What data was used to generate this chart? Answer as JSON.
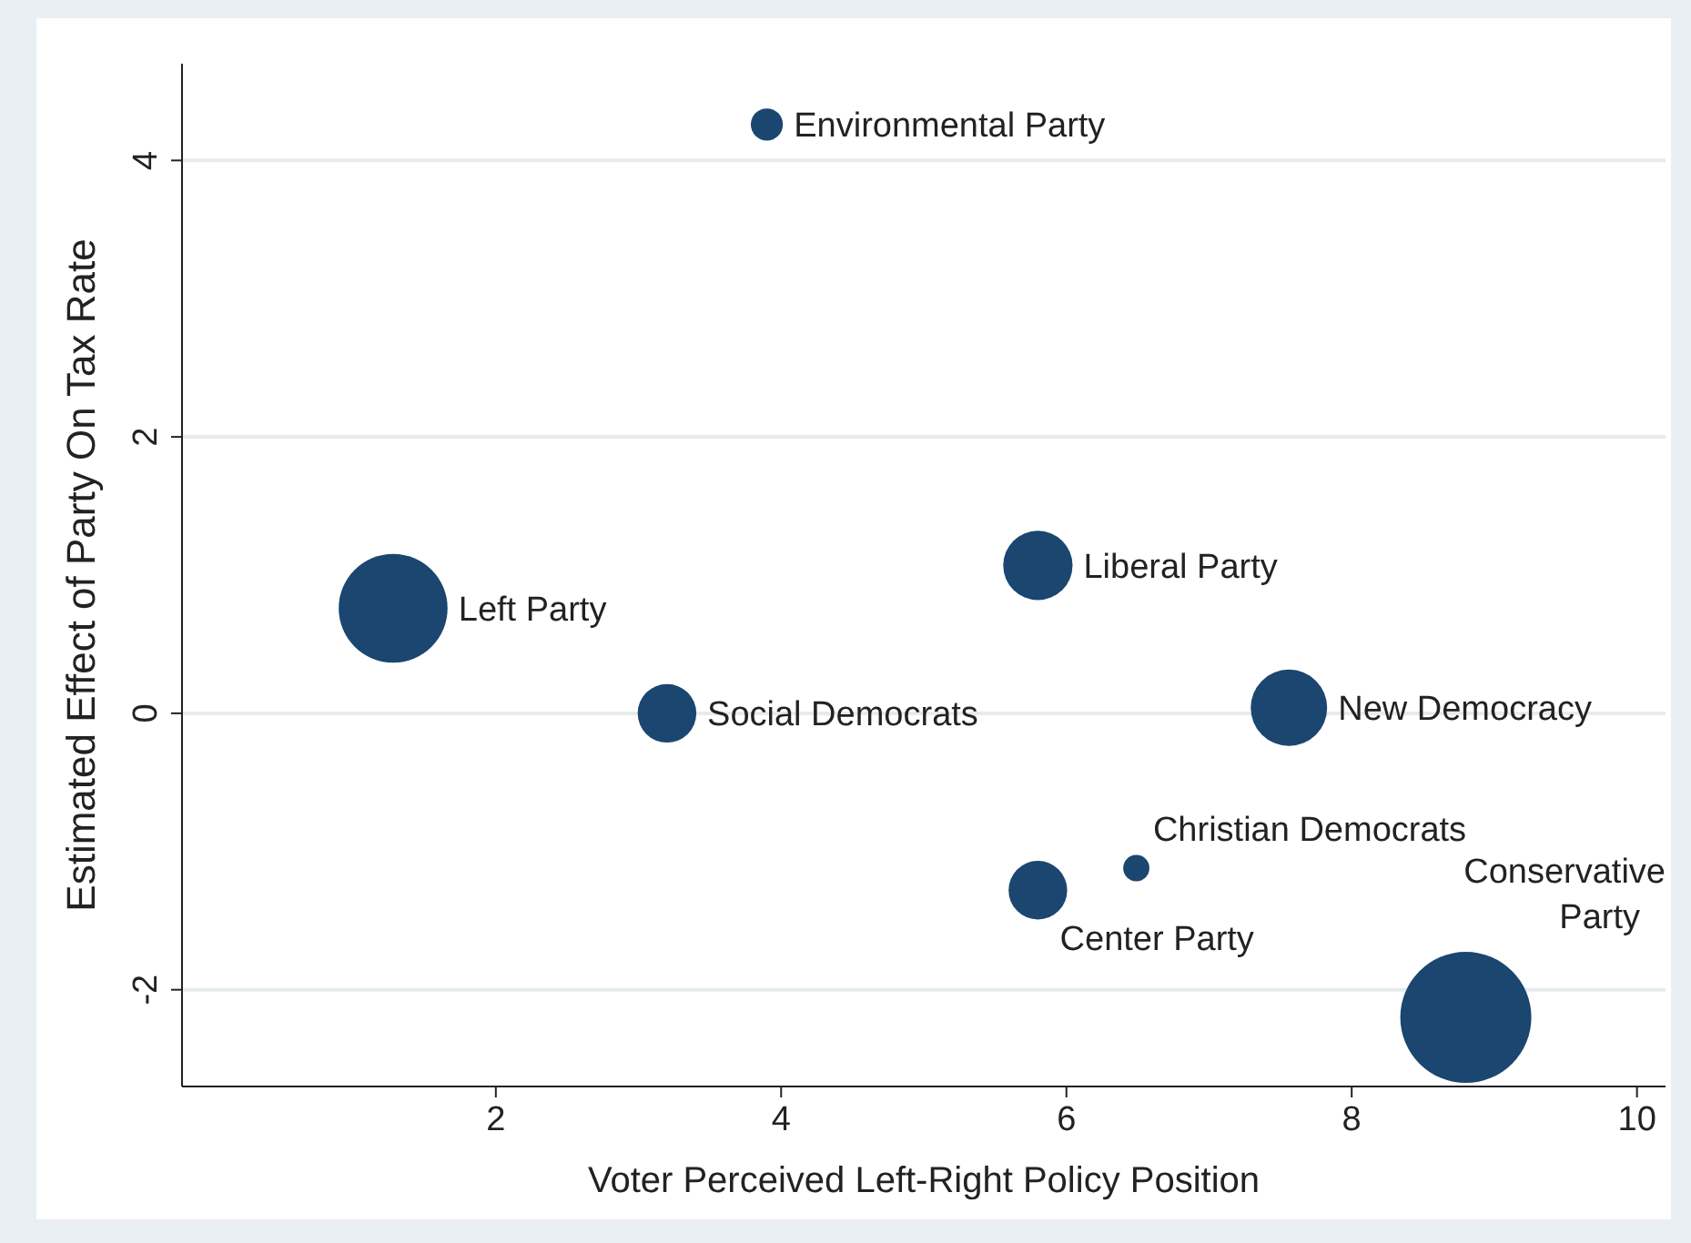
{
  "chart_data": {
    "type": "bubble",
    "xlabel": "Voter Perceived Left-Right Policy Position",
    "ylabel": "Estimated Effect of Party On Tax Rate",
    "xlim": [
      -0.2,
      10.2
    ],
    "ylim": [
      -2.7,
      4.7
    ],
    "xticks": [
      2,
      4,
      6,
      8,
      10
    ],
    "yticks": [
      -2,
      0,
      2,
      4
    ],
    "grid": "y",
    "series": [
      {
        "name": "Environmental Party",
        "color": "#1a4670",
        "x": [
          3.9
        ],
        "values": [
          4.26
        ],
        "sizes": [
          0.06
        ]
      },
      {
        "name": "Left Party",
        "color": "#1a4670",
        "x": [
          1.28
        ],
        "values": [
          0.76
        ],
        "sizes": [
          0.69
        ]
      },
      {
        "name": "Social Democrats",
        "color": "#1a4670",
        "x": [
          3.2
        ],
        "values": [
          0.0
        ],
        "sizes": [
          0.2
        ]
      },
      {
        "name": "Liberal Party",
        "color": "#1a4670",
        "x": [
          5.8
        ],
        "values": [
          1.07
        ],
        "sizes": [
          0.28
        ]
      },
      {
        "name": "New Democracy",
        "color": "#1a4670",
        "x": [
          7.56
        ],
        "values": [
          0.04
        ],
        "sizes": [
          0.34
        ]
      },
      {
        "name": "Christian Democrats",
        "color": "#1a4670",
        "x": [
          6.49
        ],
        "values": [
          -1.12
        ],
        "sizes": [
          0.04
        ]
      },
      {
        "name": "Center Party",
        "color": "#1a4670",
        "x": [
          5.8
        ],
        "values": [
          -1.28
        ],
        "sizes": [
          0.2
        ]
      },
      {
        "name": "Conservative Party",
        "color": "#1a4670",
        "x": [
          8.8
        ],
        "values": [
          -2.2
        ],
        "sizes": [
          1
        ]
      }
    ]
  }
}
